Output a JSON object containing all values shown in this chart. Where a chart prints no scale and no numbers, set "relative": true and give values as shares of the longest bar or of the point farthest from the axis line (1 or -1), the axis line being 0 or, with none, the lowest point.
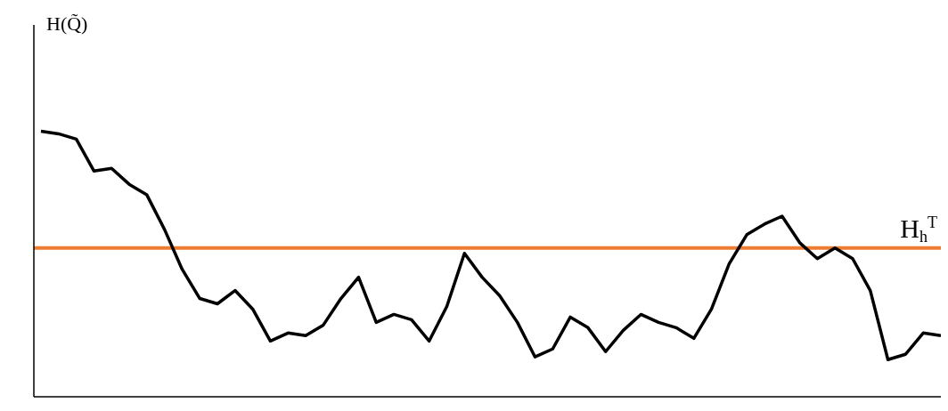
{
  "chart_data": {
    "type": "line",
    "relative": true,
    "ylabel": "H(Q̃)",
    "categories": [
      null,
      null,
      null,
      null,
      null,
      null,
      null,
      null,
      null,
      null,
      null,
      null,
      null,
      null,
      null,
      null,
      null,
      null,
      null,
      null,
      null,
      null,
      null,
      null,
      null,
      null,
      null,
      null,
      null,
      null,
      null,
      null,
      null,
      null,
      null,
      null,
      null,
      null,
      null,
      null,
      null,
      null,
      null,
      null,
      null,
      null,
      null,
      null,
      null,
      null,
      null,
      null
    ],
    "series": [
      {
        "color": "#000000",
        "values": [
          1.0,
          0.99,
          0.97,
          0.85,
          0.86,
          0.8,
          0.76,
          0.63,
          0.48,
          0.37,
          0.35,
          0.4,
          0.33,
          0.21,
          0.24,
          0.23,
          0.27,
          0.37,
          0.45,
          0.28,
          0.31,
          0.29,
          0.21,
          0.34,
          0.54,
          0.45,
          0.38,
          0.28,
          0.15,
          0.18,
          0.3,
          0.26,
          0.17,
          0.25,
          0.31,
          0.28,
          0.26,
          0.22,
          0.33,
          0.5,
          0.61,
          0.65,
          0.68,
          0.58,
          0.52,
          0.56,
          0.52,
          0.4,
          0.14,
          0.16,
          0.24,
          0.23
        ]
      }
    ],
    "ref_lines": [
      {
        "axis": "y",
        "value": 0.56,
        "label": "H$_{h}$$^{T}$",
        "color": "#ed7d31"
      }
    ],
    "marker": "none"
  }
}
